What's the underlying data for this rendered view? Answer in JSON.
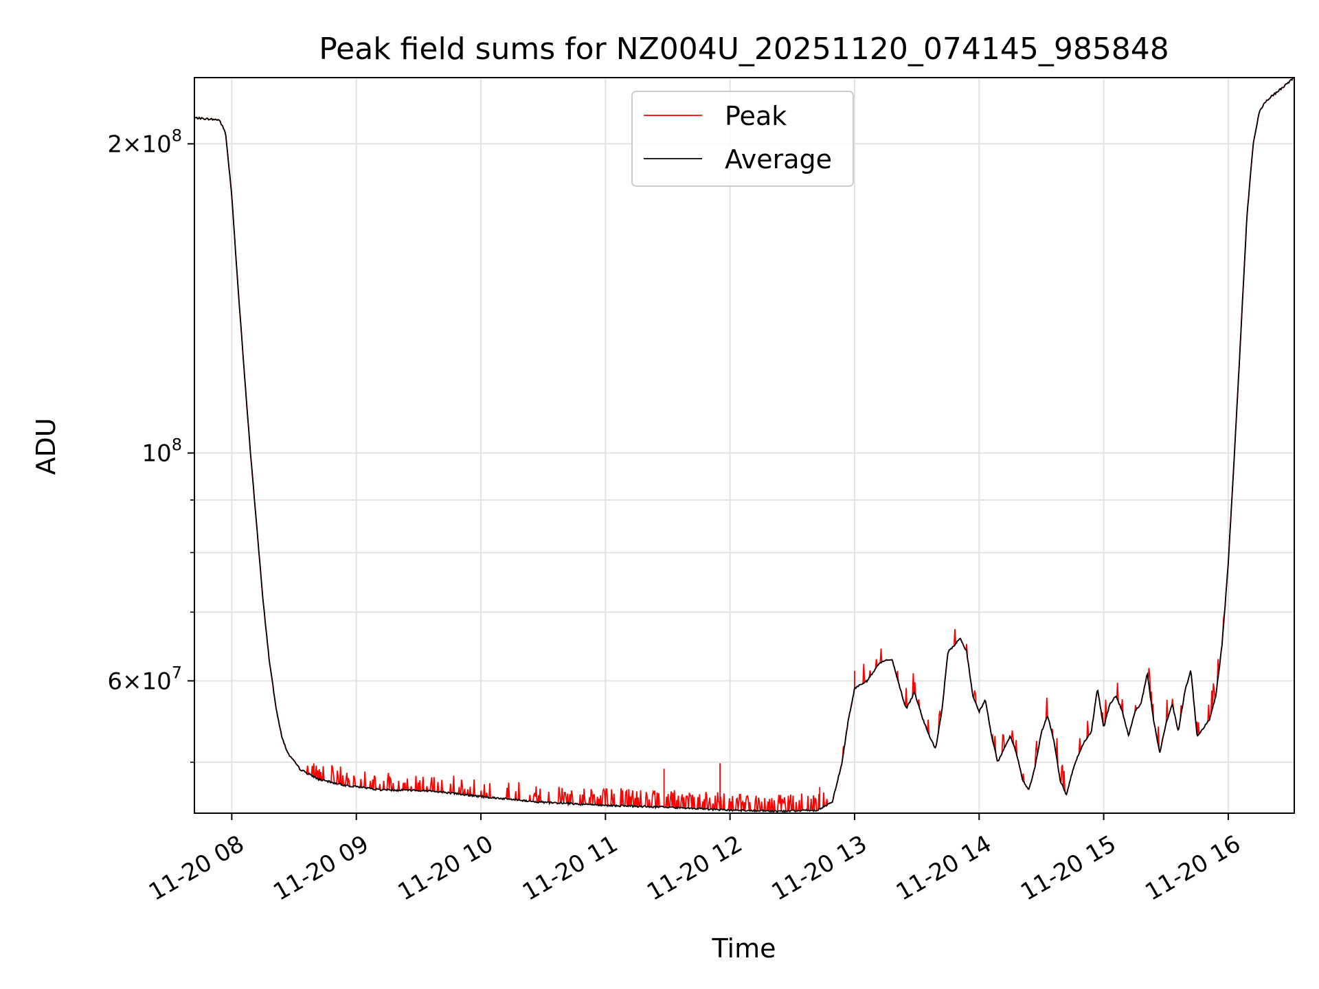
{
  "chart_data": {
    "type": "line",
    "title": "Peak field sums for NZ004U_20251120_074145_985848",
    "xlabel": "Time",
    "ylabel": "ADU",
    "yscale": "log",
    "ylim": [
      44600000,
      232000000
    ],
    "xlim_hours": [
      7.7,
      16.53
    ],
    "grid": true,
    "legend_position": "upper center",
    "x_ticks": [
      {
        "hour": 8,
        "label": "11-20 08"
      },
      {
        "hour": 9,
        "label": "11-20 09"
      },
      {
        "hour": 10,
        "label": "11-20 10"
      },
      {
        "hour": 11,
        "label": "11-20 11"
      },
      {
        "hour": 12,
        "label": "11-20 12"
      },
      {
        "hour": 13,
        "label": "11-20 13"
      },
      {
        "hour": 14,
        "label": "11-20 14"
      },
      {
        "hour": 15,
        "label": "11-20 15"
      },
      {
        "hour": 16,
        "label": "11-20 16"
      }
    ],
    "y_major_ticks": [
      {
        "value": 60000000,
        "mantissa": "6",
        "exponent": "7"
      },
      {
        "value": 100000000,
        "mantissa": "",
        "exponent": "8"
      },
      {
        "value": 200000000,
        "mantissa": "2",
        "exponent": "8"
      }
    ],
    "y_minor_ticks": [
      50000000,
      70000000,
      80000000,
      90000000
    ],
    "series": [
      {
        "name": "Peak",
        "color": "#ff0000"
      },
      {
        "name": "Average",
        "color": "#000000"
      }
    ],
    "average_points": [
      [
        7.7,
        212000000
      ],
      [
        7.9,
        211000000
      ],
      [
        7.95,
        205000000
      ],
      [
        8.0,
        178000000
      ],
      [
        8.05,
        145000000
      ],
      [
        8.1,
        120000000
      ],
      [
        8.15,
        100000000
      ],
      [
        8.2,
        85000000
      ],
      [
        8.25,
        72000000
      ],
      [
        8.3,
        63000000
      ],
      [
        8.35,
        57000000
      ],
      [
        8.4,
        53000000
      ],
      [
        8.45,
        51000000
      ],
      [
        8.55,
        49200000
      ],
      [
        8.7,
        48100000
      ],
      [
        8.9,
        47500000
      ],
      [
        9.2,
        47000000
      ],
      [
        9.6,
        46900000
      ],
      [
        10.0,
        46300000
      ],
      [
        10.5,
        45700000
      ],
      [
        11.0,
        45400000
      ],
      [
        11.5,
        45200000
      ],
      [
        12.0,
        44900000
      ],
      [
        12.4,
        44800000
      ],
      [
        12.7,
        44900000
      ],
      [
        12.82,
        45700000
      ],
      [
        12.9,
        50000000
      ],
      [
        12.95,
        55000000
      ],
      [
        13.0,
        59000000
      ],
      [
        13.1,
        60000000
      ],
      [
        13.2,
        62500000
      ],
      [
        13.3,
        63000000
      ],
      [
        13.4,
        57000000
      ],
      [
        13.42,
        56500000
      ],
      [
        13.48,
        58500000
      ],
      [
        13.55,
        55000000
      ],
      [
        13.6,
        53000000
      ],
      [
        13.65,
        51500000
      ],
      [
        13.7,
        56000000
      ],
      [
        13.75,
        64000000
      ],
      [
        13.8,
        65000000
      ],
      [
        13.85,
        66000000
      ],
      [
        13.9,
        64000000
      ],
      [
        13.95,
        58000000
      ],
      [
        14.0,
        56000000
      ],
      [
        14.05,
        57500000
      ],
      [
        14.1,
        53000000
      ],
      [
        14.15,
        50000000
      ],
      [
        14.2,
        51500000
      ],
      [
        14.25,
        53000000
      ],
      [
        14.3,
        51000000
      ],
      [
        14.35,
        48000000
      ],
      [
        14.4,
        47000000
      ],
      [
        14.45,
        49500000
      ],
      [
        14.5,
        53500000
      ],
      [
        14.55,
        55500000
      ],
      [
        14.6,
        52500000
      ],
      [
        14.65,
        48000000
      ],
      [
        14.7,
        46500000
      ],
      [
        14.75,
        49000000
      ],
      [
        14.8,
        51000000
      ],
      [
        14.85,
        52500000
      ],
      [
        14.9,
        53500000
      ],
      [
        14.95,
        59000000
      ],
      [
        15.0,
        54000000
      ],
      [
        15.05,
        57000000
      ],
      [
        15.1,
        58000000
      ],
      [
        15.15,
        56000000
      ],
      [
        15.2,
        53000000
      ],
      [
        15.25,
        56000000
      ],
      [
        15.3,
        57000000
      ],
      [
        15.35,
        61000000
      ],
      [
        15.4,
        55000000
      ],
      [
        15.45,
        51000000
      ],
      [
        15.5,
        54500000
      ],
      [
        15.55,
        57000000
      ],
      [
        15.6,
        53500000
      ],
      [
        15.65,
        58500000
      ],
      [
        15.7,
        61500000
      ],
      [
        15.75,
        53000000
      ],
      [
        15.8,
        54000000
      ],
      [
        15.85,
        55000000
      ],
      [
        15.9,
        58000000
      ],
      [
        15.95,
        65000000
      ],
      [
        16.0,
        78000000
      ],
      [
        16.05,
        100000000
      ],
      [
        16.1,
        130000000
      ],
      [
        16.15,
        170000000
      ],
      [
        16.2,
        200000000
      ],
      [
        16.25,
        215000000
      ],
      [
        16.3,
        220000000
      ],
      [
        16.4,
        225000000
      ],
      [
        16.53,
        232000000
      ]
    ]
  }
}
